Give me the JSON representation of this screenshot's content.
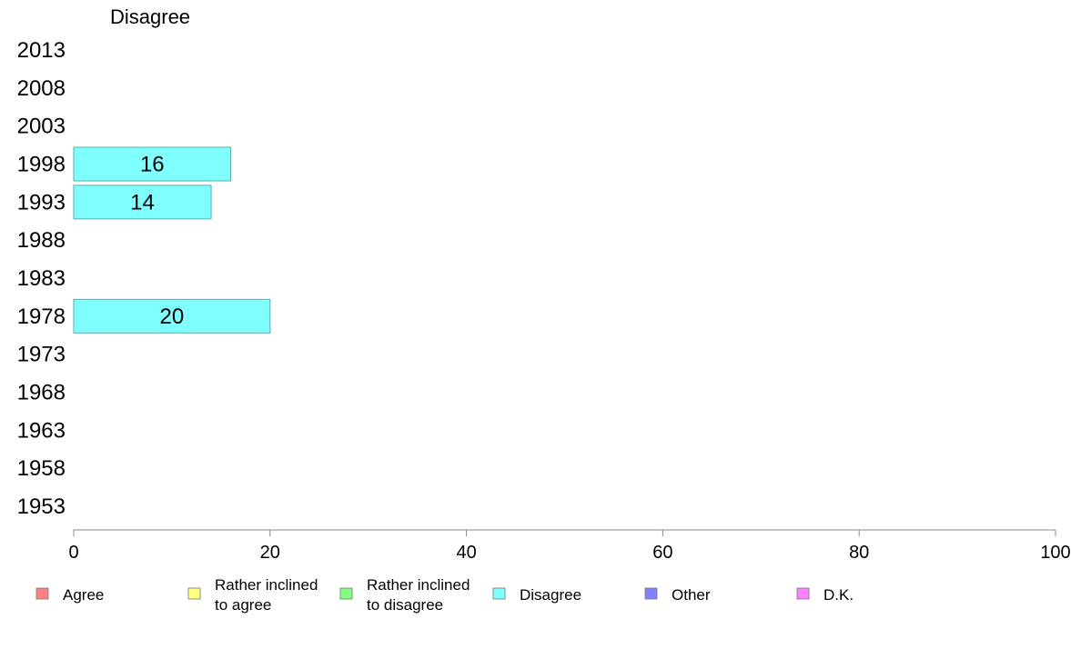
{
  "chart_data": {
    "type": "bar",
    "title": "Disagree",
    "orientation": "horizontal",
    "categories": [
      "2013",
      "2008",
      "2003",
      "1998",
      "1993",
      "1988",
      "1983",
      "1978",
      "1973",
      "1968",
      "1963",
      "1958",
      "1953"
    ],
    "series": [
      {
        "name": "Disagree",
        "color": "#80ffff",
        "values": [
          null,
          null,
          null,
          16,
          14,
          null,
          null,
          20,
          null,
          null,
          null,
          null,
          null
        ]
      }
    ],
    "xlim": [
      0,
      100
    ],
    "xticks": [
      "0",
      "20",
      "40",
      "60",
      "80",
      "100"
    ],
    "grid": false,
    "legend_position": "bottom",
    "legend": [
      {
        "label": [
          "Agree"
        ],
        "color": "#ff8080"
      },
      {
        "label": [
          "Rather inclined",
          "to agree"
        ],
        "color": "#ffff80"
      },
      {
        "label": [
          "Rather inclined",
          "to disagree"
        ],
        "color": "#80ff80"
      },
      {
        "label": [
          "Disagree"
        ],
        "color": "#80ffff"
      },
      {
        "label": [
          "Other"
        ],
        "color": "#8080ff"
      },
      {
        "label": [
          "D.K."
        ],
        "color": "#ff80ff"
      }
    ]
  }
}
